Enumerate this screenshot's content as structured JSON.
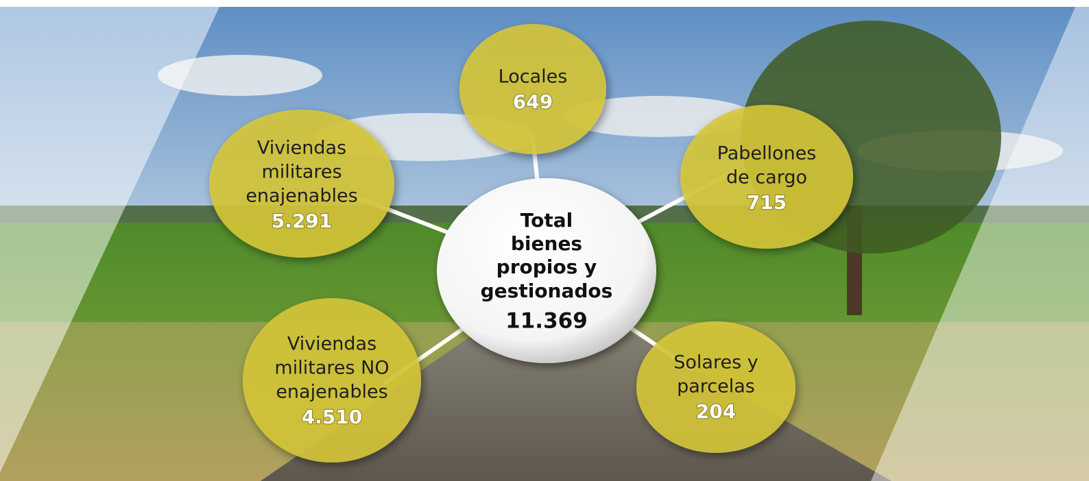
{
  "center": {
    "lines": [
      "Total",
      "bienes",
      "propios y",
      "gestionados"
    ],
    "value": "11.369"
  },
  "nodes": [
    {
      "lines": [
        "Locales"
      ],
      "value": "649"
    },
    {
      "lines": [
        "Viviendas",
        "militares",
        "enajenables"
      ],
      "value": "5.291"
    },
    {
      "lines": [
        "Pabellones",
        "de cargo"
      ],
      "value": "715"
    },
    {
      "lines": [
        "Viviendas",
        "militares NO",
        "enajenables"
      ],
      "value": "4.510"
    },
    {
      "lines": [
        "Solares y",
        "parcelas"
      ],
      "value": "204"
    }
  ]
}
